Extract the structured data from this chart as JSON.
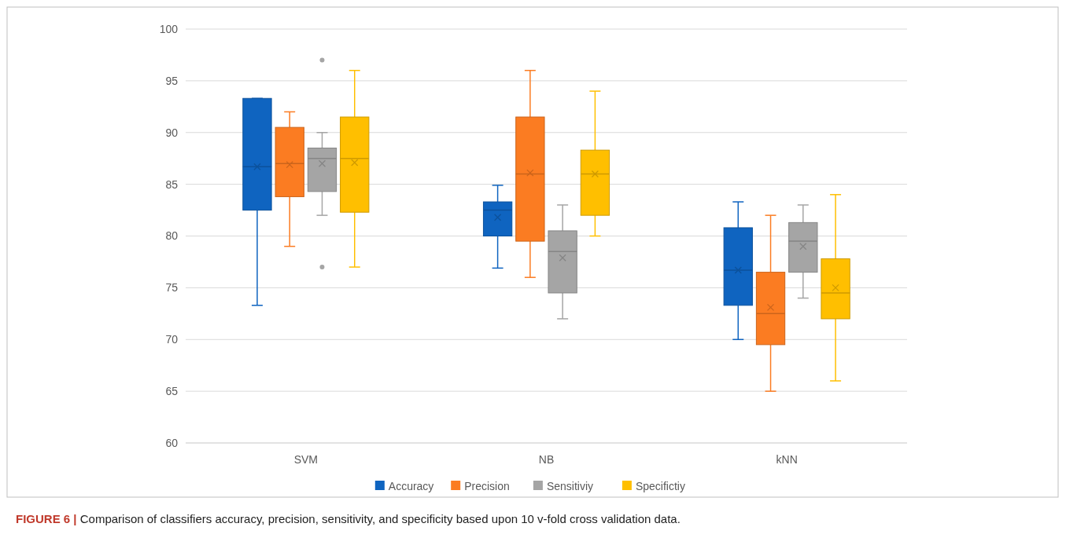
{
  "chart_data": {
    "type": "box",
    "categories": [
      "SVM",
      "NB",
      "kNN"
    ],
    "ylim": [
      60,
      100
    ],
    "yticks": [
      60,
      65,
      70,
      75,
      80,
      85,
      90,
      95,
      100
    ],
    "grid": "y",
    "legend": "bottom",
    "annotations": [
      "FIGURE 6 | Comparison of classifiers accuracy, precision, sensitivity, and specificity based upon 10 v-fold cross validation data."
    ],
    "series": [
      {
        "name": "Accuracy",
        "color": "#0f64c0",
        "boxes": [
          {
            "low": 73.3,
            "q1": 82.5,
            "median": 86.7,
            "q3": 93.3,
            "high": 93.3,
            "mean": 86.7
          },
          {
            "low": 76.9,
            "q1": 80,
            "median": 82.5,
            "q3": 83.3,
            "high": 84.9,
            "mean": 81.8
          },
          {
            "low": 70,
            "q1": 73.3,
            "median": 76.7,
            "q3": 80.8,
            "high": 83.3,
            "mean": 76.7
          }
        ]
      },
      {
        "name": "Precision",
        "color": "#fb7c22",
        "boxes": [
          {
            "low": 79,
            "q1": 83.8,
            "median": 87,
            "q3": 90.5,
            "high": 92,
            "mean": 86.9
          },
          {
            "low": 76,
            "q1": 79.5,
            "median": 86,
            "q3": 91.5,
            "high": 96,
            "mean": 86.1
          },
          {
            "low": 65,
            "q1": 69.5,
            "median": 72.5,
            "q3": 76.5,
            "high": 82,
            "mean": 73.1
          }
        ]
      },
      {
        "name": "Sensitiviy",
        "color": "#a5a5a5",
        "boxes": [
          {
            "low": 82,
            "q1": 84.3,
            "median": 87.5,
            "q3": 88.5,
            "high": 90,
            "mean": 87,
            "outliers": [
              97,
              77
            ]
          },
          {
            "low": 72,
            "q1": 74.5,
            "median": 78.5,
            "q3": 80.5,
            "high": 83,
            "mean": 77.9
          },
          {
            "low": 74,
            "q1": 76.5,
            "median": 79.5,
            "q3": 81.3,
            "high": 83,
            "mean": 79
          }
        ]
      },
      {
        "name": "Specifictiy",
        "color": "#ffbf00",
        "boxes": [
          {
            "low": 77,
            "q1": 82.3,
            "median": 87.5,
            "q3": 91.5,
            "high": 96,
            "mean": 87.1
          },
          {
            "low": 80,
            "q1": 82,
            "median": 86,
            "q3": 88.3,
            "high": 94,
            "mean": 86
          },
          {
            "low": 66,
            "q1": 72,
            "median": 74.5,
            "q3": 77.8,
            "high": 84,
            "mean": 75
          }
        ]
      }
    ]
  }
}
